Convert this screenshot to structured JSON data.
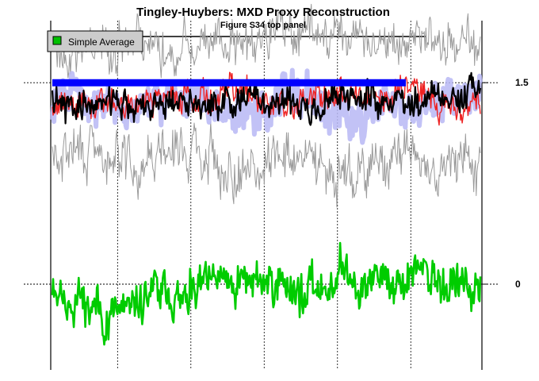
{
  "chart_data": {
    "type": "line",
    "title": "Tingley-Huybers: MXD Proxy Reconstruction",
    "subtitle": "Figure S34 top panel",
    "legend": {
      "label": "Simple Average",
      "color": "#00c000",
      "placement": "top-left"
    },
    "y_axis": {
      "side": "right",
      "ylim": [
        -0.65,
        1.95
      ],
      "ticks": [
        {
          "value": 1.5,
          "label": "1.5"
        },
        {
          "value": 0,
          "label": "0"
        }
      ]
    },
    "x_grid_fractions": [
      0.155,
      0.325,
      0.495,
      0.665,
      0.835
    ],
    "series": [
      {
        "name": "Simple Average",
        "color": "#00cc00",
        "width": 2.6,
        "offset": 0.0,
        "amp": 0.17,
        "low": 0.06,
        "seed": 11
      },
      {
        "name": "Ensemble upper gray",
        "color": "#9a9a9a",
        "width": 1.0,
        "offset": 1.78,
        "amp": 0.18,
        "low": 0.05,
        "seed": 23
      },
      {
        "name": "Ensemble lower gray",
        "color": "#9a9a9a",
        "width": 1.0,
        "offset": 0.92,
        "amp": 0.2,
        "low": 0.06,
        "seed": 29
      },
      {
        "name": "Ensemble blue band",
        "color": "#b7b7f4",
        "width": 6.0,
        "offset": 1.38,
        "amp": 0.16,
        "low": 0.04,
        "seed": 31
      },
      {
        "name": "Red members",
        "color": "#ee2222",
        "width": 1.4,
        "offset": 1.36,
        "amp": 0.12,
        "low": 0.04,
        "seed": 37
      },
      {
        "name": "Reconstruction",
        "color": "#000000",
        "width": 2.2,
        "offset": 1.34,
        "amp": 0.12,
        "low": 0.04,
        "seed": 41
      },
      {
        "name": "Mean level",
        "color": "#0000ff",
        "width": 9.0,
        "offset": 1.5,
        "amp": 0.0,
        "low": 0.0,
        "seed": 0,
        "flat": true
      }
    ]
  }
}
